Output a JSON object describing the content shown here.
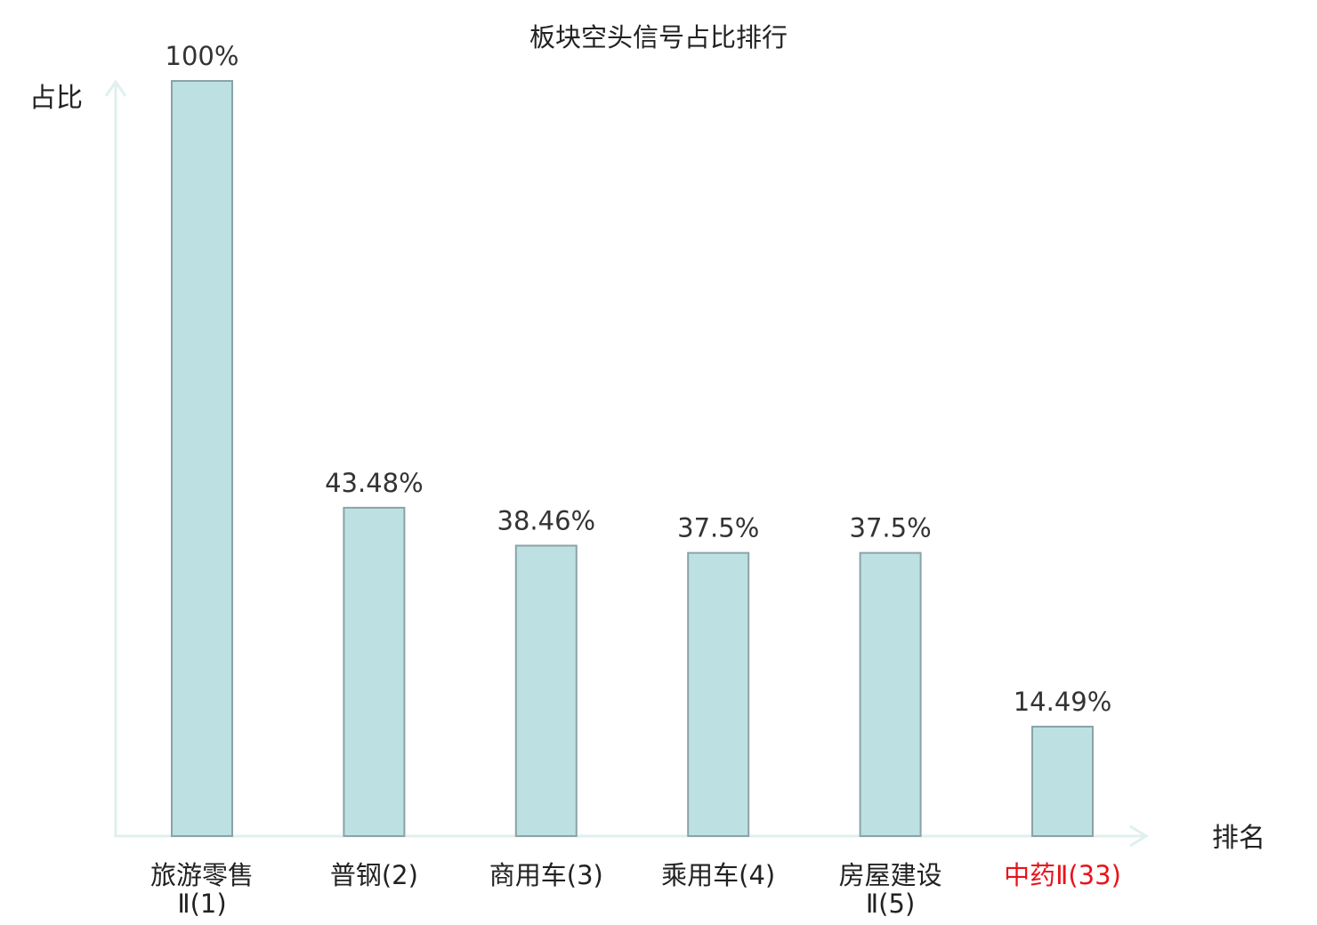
{
  "chart_data": {
    "type": "bar",
    "title": "板块空头信号占比排行",
    "ylabel": "占比",
    "xlabel": "排名",
    "ylim": [
      0,
      100
    ],
    "grid": false,
    "categories": [
      {
        "line1": "旅游零售",
        "line2": "Ⅱ(1)",
        "highlight": false
      },
      {
        "line1": "普钢(2)",
        "line2": "",
        "highlight": false
      },
      {
        "line1": "商用车(3)",
        "line2": "",
        "highlight": false
      },
      {
        "line1": "乘用车(4)",
        "line2": "",
        "highlight": false
      },
      {
        "line1": "房屋建设",
        "line2": "Ⅱ(5)",
        "highlight": false
      },
      {
        "line1": "中药Ⅱ(33)",
        "line2": "",
        "highlight": true
      }
    ],
    "values": [
      100,
      43.48,
      38.46,
      37.5,
      37.5,
      14.49
    ],
    "value_labels": [
      "100%",
      "43.48%",
      "38.46%",
      "37.5%",
      "37.5%",
      "14.49%"
    ],
    "colors": {
      "bar_fill": "#bde0e3",
      "bar_stroke": "#8aa3a8",
      "axis": "#dff0ee",
      "text": "#222222",
      "value_text": "#333333",
      "highlight": "#e8141b"
    }
  }
}
